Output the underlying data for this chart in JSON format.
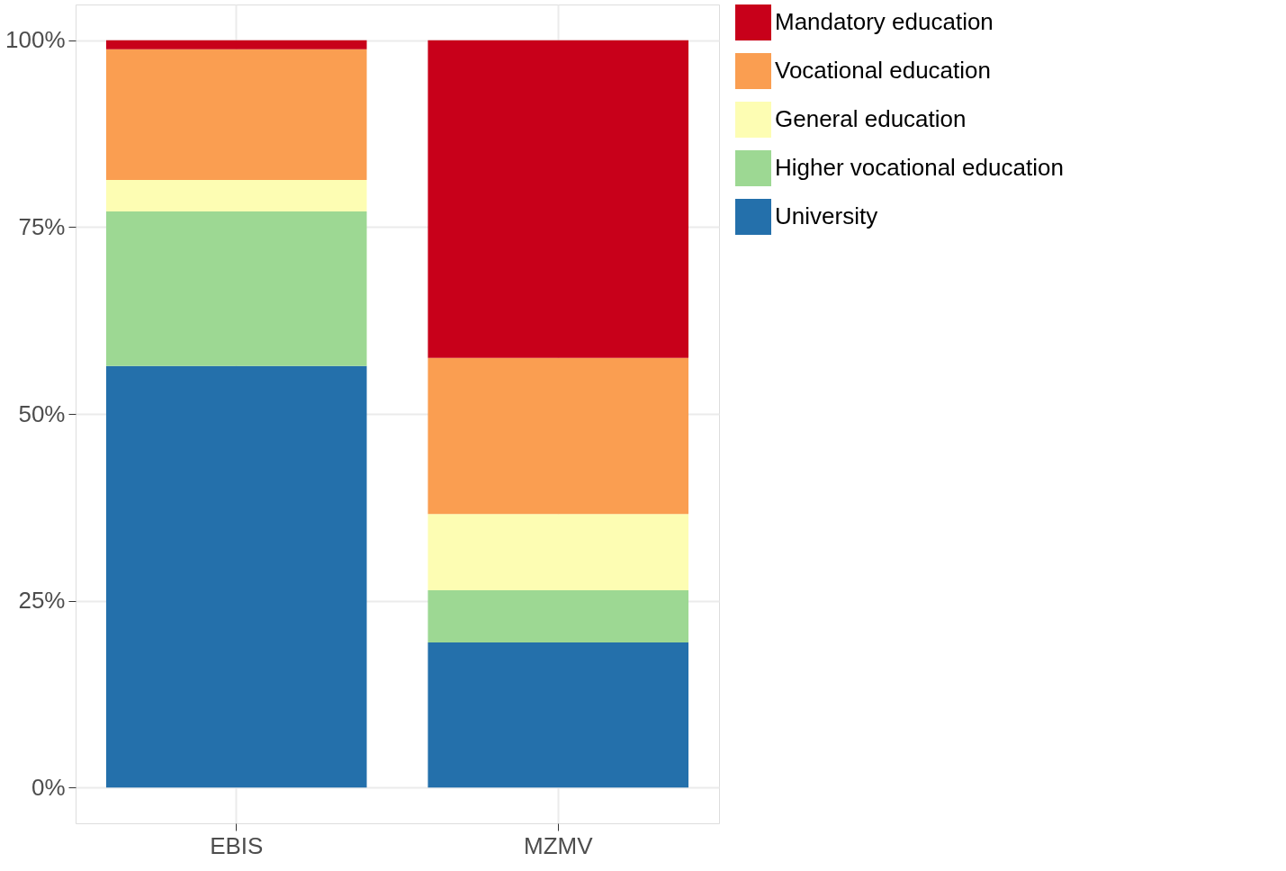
{
  "chart_data": {
    "type": "bar",
    "stacked": true,
    "categories": [
      "EBIS",
      "MZMV"
    ],
    "series": [
      {
        "name": "University",
        "color": "#2470ab",
        "values": [
          56.4,
          19.4
        ]
      },
      {
        "name": "Higher vocational education",
        "color": "#9dd893",
        "values": [
          20.7,
          7.0
        ]
      },
      {
        "name": "General education",
        "color": "#fdfdb3",
        "values": [
          4.2,
          10.2
        ]
      },
      {
        "name": "Vocational education",
        "color": "#fa9e51",
        "values": [
          17.5,
          20.9
        ]
      },
      {
        "name": "Mandatory education",
        "color": "#c8001a",
        "values": [
          1.2,
          42.5
        ]
      }
    ],
    "ylim": [
      -4.8,
      104.8
    ],
    "yticks": [
      {
        "value": 0,
        "label": "0%"
      },
      {
        "value": 25,
        "label": "25%"
      },
      {
        "value": 50,
        "label": "50%"
      },
      {
        "value": 75,
        "label": "75%"
      },
      {
        "value": 100,
        "label": "100%"
      }
    ],
    "grid": true,
    "legend": "right"
  }
}
